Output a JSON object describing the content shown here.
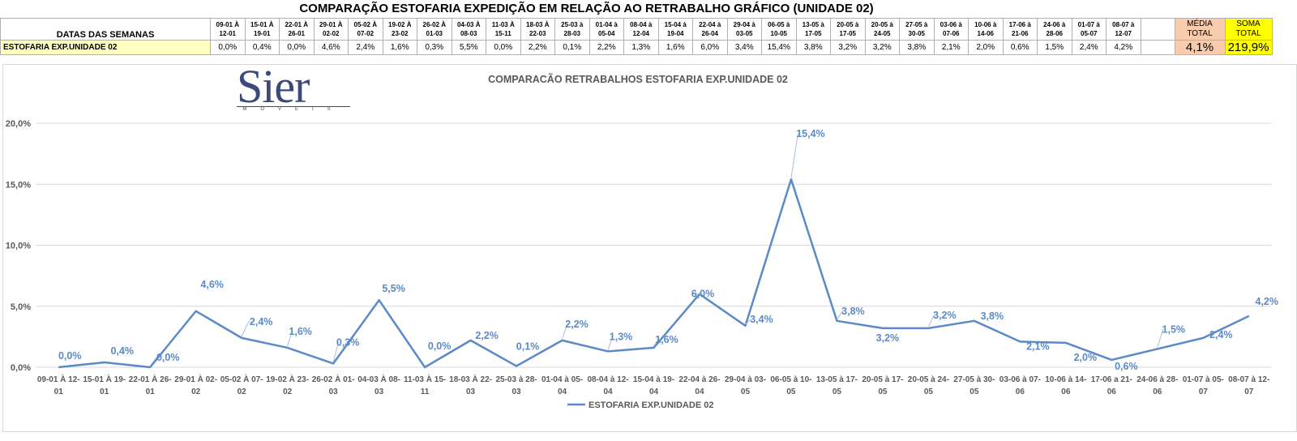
{
  "title": "COMPARAÇÃO ESTOFARIA EXPEDIÇÃO  EM RELAÇÃO AO RETRABALHO GRÁFICO (UNIDADE 02)",
  "table": {
    "header_label": "DATAS DAS SEMANAS",
    "row_label": "ESTOFARIA EXP.UNIDADE 02",
    "weeks": [
      {
        "top": "09-01 À",
        "bottom": "12-01"
      },
      {
        "top": "15-01 À",
        "bottom": "19-01"
      },
      {
        "top": "22-01 À",
        "bottom": "26-01"
      },
      {
        "top": "29-01 À",
        "bottom": "02-02"
      },
      {
        "top": "05-02 À",
        "bottom": "07-02"
      },
      {
        "top": "19-02 À",
        "bottom": "23-02"
      },
      {
        "top": "26-02 À",
        "bottom": "01-03"
      },
      {
        "top": "04-03 À",
        "bottom": "08-03"
      },
      {
        "top": "11-03 À",
        "bottom": "15-11"
      },
      {
        "top": "18-03 À",
        "bottom": "22-03"
      },
      {
        "top": "25-03 à",
        "bottom": "28-03"
      },
      {
        "top": "01-04 à",
        "bottom": "05-04"
      },
      {
        "top": "08-04 à",
        "bottom": "12-04"
      },
      {
        "top": "15-04 à",
        "bottom": "19-04"
      },
      {
        "top": "22-04 à",
        "bottom": "26-04"
      },
      {
        "top": "29-04 à",
        "bottom": "03-05"
      },
      {
        "top": "06-05 à",
        "bottom": "10-05"
      },
      {
        "top": "13-05 à",
        "bottom": "17-05"
      },
      {
        "top": "20-05 à",
        "bottom": "17-05"
      },
      {
        "top": "20-05 à",
        "bottom": "24-05"
      },
      {
        "top": "27-05 à",
        "bottom": "30-05"
      },
      {
        "top": "03-06 à",
        "bottom": "07-06"
      },
      {
        "top": "10-06 à",
        "bottom": "14-06"
      },
      {
        "top": "17-06 à",
        "bottom": "21-06"
      },
      {
        "top": "24-06 à",
        "bottom": "28-06"
      },
      {
        "top": "01-07 à",
        "bottom": "05-07"
      },
      {
        "top": "08-07 à",
        "bottom": "12-07"
      }
    ],
    "values": [
      "0,0%",
      "0,4%",
      "0,0%",
      "4,6%",
      "2,4%",
      "1,6%",
      "0,3%",
      "5,5%",
      "0,0%",
      "2,2%",
      "0,1%",
      "2,2%",
      "1,3%",
      "1,6%",
      "6,0%",
      "3,4%",
      "15,4%",
      "3,8%",
      "3,2%",
      "3,2%",
      "3,8%",
      "2,1%",
      "2,0%",
      "0,6%",
      "1,5%",
      "2,4%",
      "4,2%"
    ],
    "media_label": "MÉDIA TOTAL",
    "soma_label": "SOMA TOTAL",
    "media_value": "4,1%",
    "soma_value": "219,9%"
  },
  "logo": {
    "text": "Sier",
    "sub": "MÓVEIS"
  },
  "colors": {
    "line": "#5b8ac6",
    "label": "#5b8ac6",
    "grid": "#d9d9d9",
    "media": "#f8cbad",
    "soma": "#ffff00",
    "row_label_bg": "#ffffc0"
  },
  "chart_data": {
    "type": "line",
    "title": "COMPARACÃO RETRABALHOS  ESTOFARIA EXP.UNIDADE 02",
    "xlabel": "",
    "ylabel": "",
    "ylim": [
      0,
      20
    ],
    "yticks": [
      "0,0%",
      "5,0%",
      "10,0%",
      "15,0%",
      "20,0%"
    ],
    "grid": true,
    "legend_position": "bottom",
    "categories": [
      {
        "top": "09-01 À 12-",
        "bottom": "01"
      },
      {
        "top": "15-01 À 19-",
        "bottom": "01"
      },
      {
        "top": "22-01 À 26-",
        "bottom": "01"
      },
      {
        "top": "29-01 À 02-",
        "bottom": "02"
      },
      {
        "top": "05-02 À 07-",
        "bottom": "02"
      },
      {
        "top": "19-02 À 23-",
        "bottom": "02"
      },
      {
        "top": "26-02 À 01-",
        "bottom": "03"
      },
      {
        "top": "04-03 À 08-",
        "bottom": "03"
      },
      {
        "top": "11-03 À 15-",
        "bottom": "11"
      },
      {
        "top": "18-03 À 22-",
        "bottom": "03"
      },
      {
        "top": "25-03 à 28-",
        "bottom": "03"
      },
      {
        "top": "01-04 à 05-",
        "bottom": "04"
      },
      {
        "top": "08-04 à 12-",
        "bottom": "04"
      },
      {
        "top": "15-04 à 19-",
        "bottom": "04"
      },
      {
        "top": "22-04 à 26-",
        "bottom": "04"
      },
      {
        "top": "29-04 à 03-",
        "bottom": "05"
      },
      {
        "top": "06-05 à 10-",
        "bottom": "05"
      },
      {
        "top": "13-05 à 17-",
        "bottom": "05"
      },
      {
        "top": "20-05 à 17-",
        "bottom": "05"
      },
      {
        "top": "20-05 à 24-",
        "bottom": "05"
      },
      {
        "top": "27-05 à 30-",
        "bottom": "05"
      },
      {
        "top": "03-06 à 07-",
        "bottom": "06"
      },
      {
        "top": "10-06 à 14-",
        "bottom": "06"
      },
      {
        "top": "17-06 a 21-",
        "bottom": "06"
      },
      {
        "top": "24-06 à 28-",
        "bottom": "06"
      },
      {
        "top": "01-07 à 05-",
        "bottom": "07"
      },
      {
        "top": "08-07 à 12-",
        "bottom": "07"
      }
    ],
    "series": [
      {
        "name": "ESTOFARIA EXP.UNIDADE 02",
        "values": [
          0.0,
          0.4,
          0.0,
          4.6,
          2.4,
          1.6,
          0.3,
          5.5,
          0.0,
          2.2,
          0.1,
          2.2,
          1.3,
          1.6,
          6.0,
          3.4,
          15.4,
          3.8,
          3.2,
          3.2,
          3.8,
          2.1,
          2.0,
          0.6,
          1.5,
          2.4,
          4.2
        ],
        "labels": [
          "0,0%",
          "0,4%",
          "0,0%",
          "4,6%",
          "2,4%",
          "1,6%",
          "0,3%",
          "5,5%",
          "0,0%",
          "2,2%",
          "0,1%",
          "2,2%",
          "1,3%",
          "1,6%",
          "6,0%",
          "3,4%",
          "15,4%",
          "3,8%",
          "3,2%",
          "3,2%",
          "3,8%",
          "2,1%",
          "2,0%",
          "0,6%",
          "1,5%",
          "2,4%",
          "4,2%"
        ]
      }
    ]
  }
}
